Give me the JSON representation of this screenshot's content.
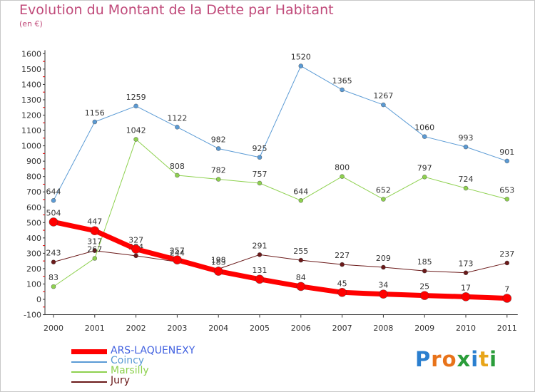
{
  "title": "Evolution du Montant de la Dette par Habitant",
  "subtitle": "(en €)",
  "logo": {
    "text": "Proxiti",
    "letters": [
      {
        "ch": "P",
        "color": "#2a7fcf"
      },
      {
        "ch": "r",
        "color": "#e8731a"
      },
      {
        "ch": "o",
        "color": "#e8731a"
      },
      {
        "ch": "x",
        "color": "#2a9d3a"
      },
      {
        "ch": "i",
        "color": "#2a7fcf"
      },
      {
        "ch": "t",
        "color": "#e8a51a"
      },
      {
        "ch": "i",
        "color": "#2a9d3a"
      }
    ]
  },
  "chart_data": {
    "type": "line",
    "x": [
      "2000",
      "2001",
      "2002",
      "2003",
      "2004",
      "2005",
      "2006",
      "2007",
      "2008",
      "2009",
      "2010",
      "2011"
    ],
    "ylim": [
      -100,
      1600
    ],
    "yticks": [
      -100,
      0,
      100,
      200,
      300,
      400,
      500,
      600,
      700,
      800,
      900,
      1000,
      1100,
      1200,
      1300,
      1400,
      1500,
      1600
    ],
    "grid": false,
    "legend_position": "bottom-left",
    "series": [
      {
        "name": "Jury",
        "color": "#6b1a1a",
        "width": 1,
        "marker": 3,
        "values": [
          243,
          317,
          284,
          244,
          198,
          291,
          255,
          227,
          209,
          185,
          173,
          237
        ]
      },
      {
        "name": "Marsilly",
        "color": "#8ed14f",
        "width": 1,
        "marker": 3,
        "values": [
          83,
          267,
          1042,
          808,
          782,
          757,
          644,
          800,
          652,
          797,
          724,
          653
        ]
      },
      {
        "name": "Coincy",
        "color": "#5b9bd5",
        "width": 1,
        "marker": 3,
        "values": [
          644,
          1156,
          1259,
          1122,
          982,
          925,
          1520,
          1365,
          1267,
          1060,
          993,
          901
        ]
      },
      {
        "name": "ARS-LAQUENEXY",
        "color": "#ff0000",
        "width": 7,
        "marker": 6,
        "values": [
          504,
          447,
          327,
          257,
          183,
          131,
          84,
          45,
          34,
          25,
          17,
          7
        ]
      }
    ],
    "legend_order": [
      "ARS-LAQUENEXY",
      "Coincy",
      "Marsilly",
      "Jury"
    ]
  }
}
